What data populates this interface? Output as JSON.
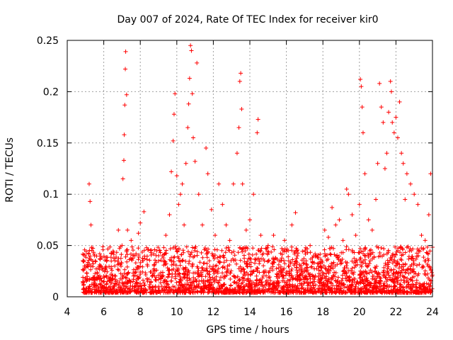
{
  "chart_data": {
    "type": "scatter",
    "title": "Day 007 of 2024, Rate Of TEC Index for receiver kir0",
    "xlabel": "GPS time / hours",
    "ylabel": "ROTI / TECUs",
    "xlim": [
      4,
      24
    ],
    "ylim": [
      0,
      0.25
    ],
    "xticks": [
      "4",
      "6",
      "8",
      "10",
      "12",
      "14",
      "16",
      "18",
      "20",
      "22",
      "24"
    ],
    "yticks": [
      "0",
      "0.05",
      "0.1",
      "0.15",
      "0.2",
      "0.25"
    ],
    "grid": true,
    "marker": "+",
    "color": "#ff0000",
    "series": [
      {
        "name": "ROTI",
        "points": [
          [
            4.9,
            0.012
          ],
          [
            5.0,
            0.018
          ],
          [
            5.1,
            0.03
          ],
          [
            5.2,
            0.11
          ],
          [
            5.25,
            0.093
          ],
          [
            5.3,
            0.07
          ],
          [
            5.35,
            0.045
          ],
          [
            5.5,
            0.04
          ],
          [
            5.6,
            0.018
          ],
          [
            5.8,
            0.012
          ],
          [
            6.0,
            0.02
          ],
          [
            6.2,
            0.015
          ],
          [
            6.4,
            0.022
          ],
          [
            6.6,
            0.03
          ],
          [
            6.8,
            0.065
          ],
          [
            7.0,
            0.05
          ],
          [
            7.05,
            0.115
          ],
          [
            7.1,
            0.133
          ],
          [
            7.12,
            0.158
          ],
          [
            7.15,
            0.187
          ],
          [
            7.18,
            0.222
          ],
          [
            7.2,
            0.239
          ],
          [
            7.25,
            0.197
          ],
          [
            7.3,
            0.065
          ],
          [
            7.5,
            0.055
          ],
          [
            7.7,
            0.04
          ],
          [
            7.9,
            0.062
          ],
          [
            8.0,
            0.072
          ],
          [
            8.2,
            0.083
          ],
          [
            8.4,
            0.03
          ],
          [
            8.6,
            0.045
          ],
          [
            8.8,
            0.025
          ],
          [
            9.0,
            0.035
          ],
          [
            9.2,
            0.04
          ],
          [
            9.4,
            0.06
          ],
          [
            9.6,
            0.08
          ],
          [
            9.7,
            0.122
          ],
          [
            9.8,
            0.152
          ],
          [
            9.85,
            0.178
          ],
          [
            9.9,
            0.198
          ],
          [
            10.0,
            0.118
          ],
          [
            10.1,
            0.09
          ],
          [
            10.2,
            0.1
          ],
          [
            10.3,
            0.11
          ],
          [
            10.4,
            0.07
          ],
          [
            10.5,
            0.13
          ],
          [
            10.6,
            0.165
          ],
          [
            10.65,
            0.188
          ],
          [
            10.7,
            0.213
          ],
          [
            10.75,
            0.245
          ],
          [
            10.8,
            0.24
          ],
          [
            10.85,
            0.198
          ],
          [
            10.9,
            0.155
          ],
          [
            11.0,
            0.132
          ],
          [
            11.1,
            0.228
          ],
          [
            11.2,
            0.1
          ],
          [
            11.4,
            0.07
          ],
          [
            11.6,
            0.145
          ],
          [
            11.7,
            0.12
          ],
          [
            11.9,
            0.085
          ],
          [
            12.1,
            0.06
          ],
          [
            12.3,
            0.11
          ],
          [
            12.5,
            0.09
          ],
          [
            12.7,
            0.07
          ],
          [
            12.9,
            0.055
          ],
          [
            13.1,
            0.11
          ],
          [
            13.3,
            0.14
          ],
          [
            13.4,
            0.165
          ],
          [
            13.45,
            0.21
          ],
          [
            13.5,
            0.218
          ],
          [
            13.55,
            0.183
          ],
          [
            13.6,
            0.11
          ],
          [
            13.8,
            0.065
          ],
          [
            14.0,
            0.075
          ],
          [
            14.2,
            0.1
          ],
          [
            14.4,
            0.16
          ],
          [
            14.45,
            0.173
          ],
          [
            14.6,
            0.06
          ],
          [
            14.8,
            0.035
          ],
          [
            15.0,
            0.05
          ],
          [
            15.3,
            0.06
          ],
          [
            15.6,
            0.035
          ],
          [
            15.9,
            0.055
          ],
          [
            16.1,
            0.045
          ],
          [
            16.3,
            0.07
          ],
          [
            16.5,
            0.082
          ],
          [
            16.6,
            0.04
          ],
          [
            16.8,
            0.03
          ],
          [
            17.0,
            0.025
          ],
          [
            17.3,
            0.05
          ],
          [
            17.6,
            0.04
          ],
          [
            17.9,
            0.03
          ],
          [
            18.1,
            0.065
          ],
          [
            18.3,
            0.058
          ],
          [
            18.5,
            0.087
          ],
          [
            18.7,
            0.07
          ],
          [
            18.9,
            0.075
          ],
          [
            19.1,
            0.055
          ],
          [
            19.3,
            0.105
          ],
          [
            19.4,
            0.1
          ],
          [
            19.6,
            0.08
          ],
          [
            19.8,
            0.06
          ],
          [
            20.0,
            0.09
          ],
          [
            20.05,
            0.212
          ],
          [
            20.1,
            0.205
          ],
          [
            20.15,
            0.185
          ],
          [
            20.2,
            0.16
          ],
          [
            20.3,
            0.12
          ],
          [
            20.5,
            0.075
          ],
          [
            20.7,
            0.065
          ],
          [
            20.9,
            0.095
          ],
          [
            21.0,
            0.13
          ],
          [
            21.1,
            0.208
          ],
          [
            21.2,
            0.185
          ],
          [
            21.3,
            0.17
          ],
          [
            21.4,
            0.125
          ],
          [
            21.5,
            0.14
          ],
          [
            21.6,
            0.18
          ],
          [
            21.7,
            0.21
          ],
          [
            21.75,
            0.2
          ],
          [
            21.8,
            0.17
          ],
          [
            21.9,
            0.16
          ],
          [
            22.0,
            0.175
          ],
          [
            22.1,
            0.155
          ],
          [
            22.2,
            0.19
          ],
          [
            22.3,
            0.14
          ],
          [
            22.4,
            0.13
          ],
          [
            22.5,
            0.095
          ],
          [
            22.6,
            0.12
          ],
          [
            22.8,
            0.11
          ],
          [
            23.0,
            0.1
          ],
          [
            23.2,
            0.09
          ],
          [
            23.4,
            0.06
          ],
          [
            23.6,
            0.055
          ],
          [
            23.8,
            0.08
          ],
          [
            23.9,
            0.12
          ]
        ]
      }
    ]
  }
}
